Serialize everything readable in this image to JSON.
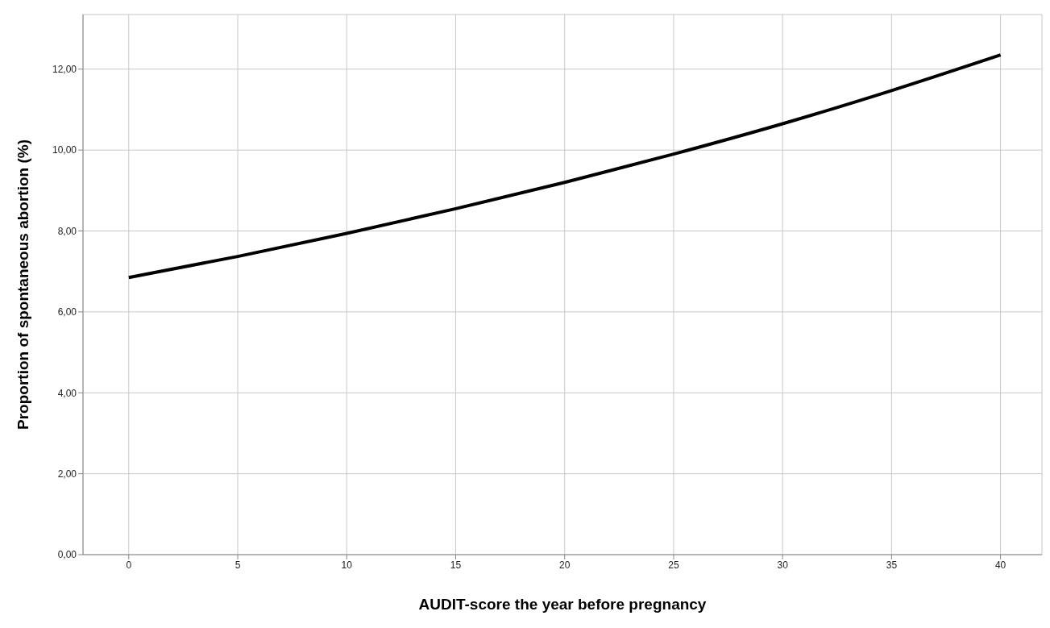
{
  "chart_data": {
    "type": "line",
    "xlabel": "AUDIT-score the year before pregnancy",
    "ylabel": "Proportion of spontaneous abortion (%)",
    "x": [
      0,
      5,
      10,
      15,
      20,
      25,
      30,
      35,
      40
    ],
    "series": [
      {
        "color": "#000000",
        "values": [
          6.85,
          7.37,
          7.94,
          8.55,
          9.2,
          9.9,
          10.65,
          11.47,
          12.35
        ]
      }
    ],
    "xlim": [
      -2.1,
      41.9
    ],
    "xticks": [
      0,
      5,
      10,
      15,
      20,
      25,
      30,
      35,
      40
    ],
    "ylim": [
      0,
      13.35
    ],
    "yticks": [
      {
        "value": 0,
        "label": "0,00"
      },
      {
        "value": 2,
        "label": "2,00"
      },
      {
        "value": 4,
        "label": "4,00"
      },
      {
        "value": 6,
        "label": "6,00"
      },
      {
        "value": 8,
        "label": "8,00"
      },
      {
        "value": 10,
        "label": "10,00"
      },
      {
        "value": 12,
        "label": "12,00"
      }
    ],
    "grid": true,
    "marker": "none",
    "line_style": "solid"
  }
}
